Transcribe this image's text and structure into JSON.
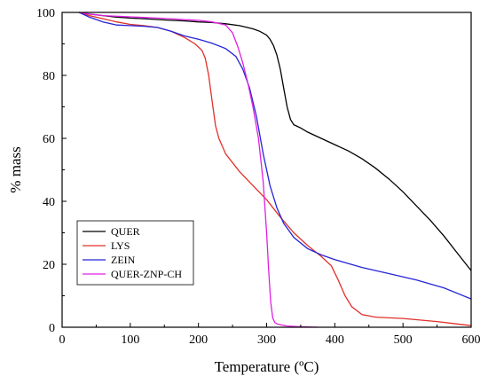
{
  "chart_data": {
    "type": "line",
    "title": "",
    "xlabel": "Temperature (ºC)",
    "ylabel": "% mass",
    "xlim": [
      0,
      600
    ],
    "ylim": [
      0,
      100
    ],
    "xticks": [
      0,
      100,
      200,
      300,
      400,
      500,
      600
    ],
    "yticks": [
      0,
      20,
      40,
      60,
      80,
      100
    ],
    "grid": false,
    "legend_position": "bottom-left",
    "series": [
      {
        "name": "QUER",
        "color": "#000000",
        "x": [
          25,
          40,
          60,
          80,
          100,
          120,
          150,
          180,
          200,
          220,
          240,
          260,
          280,
          290,
          300,
          305,
          310,
          315,
          320,
          325,
          330,
          335,
          340,
          345,
          350,
          360,
          380,
          400,
          420,
          440,
          460,
          480,
          500,
          520,
          540,
          560,
          580,
          600
        ],
        "y": [
          100,
          99.5,
          99,
          98.5,
          98.2,
          98,
          97.6,
          97.3,
          97,
          96.8,
          96.4,
          95.8,
          94.8,
          94,
          92.8,
          91.5,
          89.5,
          86.5,
          82,
          76,
          70,
          66,
          64.3,
          63.8,
          63.3,
          62,
          60,
          58,
          56,
          53.5,
          50.5,
          47,
          43,
          38.5,
          34,
          29,
          23.5,
          18
        ]
      },
      {
        "name": "LYS",
        "color": "#e0302a",
        "x": [
          25,
          40,
          60,
          80,
          100,
          120,
          140,
          160,
          180,
          195,
          205,
          210,
          215,
          220,
          225,
          230,
          240,
          260,
          280,
          300,
          320,
          340,
          360,
          380,
          395,
          405,
          415,
          425,
          440,
          460,
          500,
          550,
          600
        ],
        "y": [
          100,
          99,
          98,
          97,
          96.2,
          95.8,
          95.2,
          94,
          92,
          90,
          88,
          85.5,
          80,
          72,
          64,
          60,
          55,
          49.5,
          45,
          40.5,
          35,
          30,
          26,
          22.5,
          19.5,
          15,
          10,
          6.5,
          4,
          3.2,
          2.8,
          1.8,
          0.5
        ]
      },
      {
        "name": "ZEIN",
        "color": "#2424d8",
        "x": [
          25,
          40,
          60,
          80,
          100,
          120,
          140,
          160,
          180,
          200,
          220,
          240,
          255,
          265,
          275,
          285,
          295,
          305,
          315,
          325,
          340,
          360,
          380,
          400,
          440,
          480,
          520,
          560,
          600
        ],
        "y": [
          100,
          98.5,
          97,
          96,
          95.8,
          95.6,
          95.2,
          94,
          92.5,
          91.5,
          90.2,
          88.5,
          86,
          82,
          76,
          67,
          55,
          45,
          38,
          33,
          28.5,
          25,
          23,
          21.5,
          19,
          17,
          15,
          12.5,
          9
        ]
      },
      {
        "name": "QUER-ZNP-CH",
        "color": "#e020e0",
        "x": [
          25,
          40,
          60,
          80,
          100,
          120,
          140,
          160,
          180,
          200,
          220,
          240,
          250,
          258,
          265,
          272,
          280,
          288,
          295,
          300,
          303,
          306,
          309,
          312,
          316,
          322,
          330,
          345,
          360,
          375
        ],
        "y": [
          100,
          99.5,
          99,
          98.8,
          98.6,
          98.4,
          98.2,
          98,
          97.7,
          97.5,
          97,
          96,
          93.5,
          89,
          84,
          78,
          70,
          60,
          46,
          30,
          18,
          8,
          3,
          1.5,
          1,
          0.7,
          0.4,
          0.2,
          0.1,
          0
        ]
      }
    ]
  }
}
